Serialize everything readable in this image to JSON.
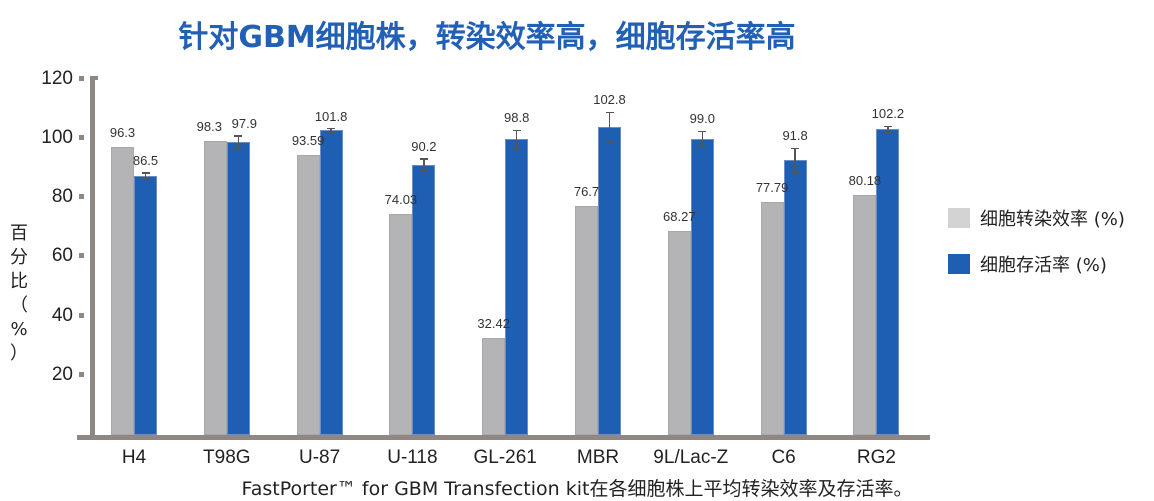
{
  "header": {
    "title": "针对GBM细胞株，转染效率高，细胞存活率高"
  },
  "axes": {
    "ylabel": "百分比（%）",
    "ylabel_chars": [
      "百",
      "分",
      "比",
      "（",
      "%",
      "）"
    ],
    "yticks": [
      "20",
      "40",
      "60",
      "80",
      "100",
      "120"
    ]
  },
  "legend": {
    "items": [
      {
        "label": "细胞转染效率 (%)",
        "color": "#d3d3d3"
      },
      {
        "label": "细胞存活率 (%)",
        "color": "#1e5fb4"
      }
    ]
  },
  "caption": "FastPorter™ for GBM Transfection kit在各细胞株上平均转染效率及存活率。",
  "chart_data": {
    "type": "bar",
    "title": "针对GBM细胞株，转染效率高，细胞存活率高",
    "xlabel": "",
    "ylabel": "百分比（%）",
    "ylim": [
      0,
      120
    ],
    "yticks": [
      20,
      40,
      60,
      80,
      100,
      120
    ],
    "grid": false,
    "legend_position": "right",
    "categories": [
      "H4",
      "T98G",
      "U-87",
      "U-118",
      "GL-261",
      "MBR",
      "9L/Lac-Z",
      "C6",
      "RG2"
    ],
    "series": [
      {
        "name": "细胞转染效率 (%)",
        "color": "#b4b4b6",
        "values": [
          96.3,
          98.3,
          93.59,
          74.03,
          32.42,
          76.7,
          68.27,
          77.79,
          80.18
        ],
        "labels": [
          "96.3",
          "98.3",
          "93.59",
          "74.03",
          "32.42",
          "76.7",
          "68.27",
          "77.79",
          "80.18"
        ]
      },
      {
        "name": "细胞存活率 (%)",
        "color": "#1e5fb4",
        "values": [
          86.5,
          97.9,
          101.8,
          90.2,
          98.8,
          102.8,
          99.0,
          91.8,
          102.2
        ],
        "labels": [
          "86.5",
          "97.9",
          "101.8",
          "90.2",
          "98.8",
          "102.8",
          "99.0",
          "91.8",
          "102.2"
        ],
        "error": [
          1.0,
          2.0,
          0.6,
          2.0,
          3.0,
          5.0,
          2.5,
          4.0,
          1.0
        ]
      }
    ],
    "caption": "FastPorter™ for GBM Transfection kit在各细胞株上平均转染效率及存活率。"
  }
}
